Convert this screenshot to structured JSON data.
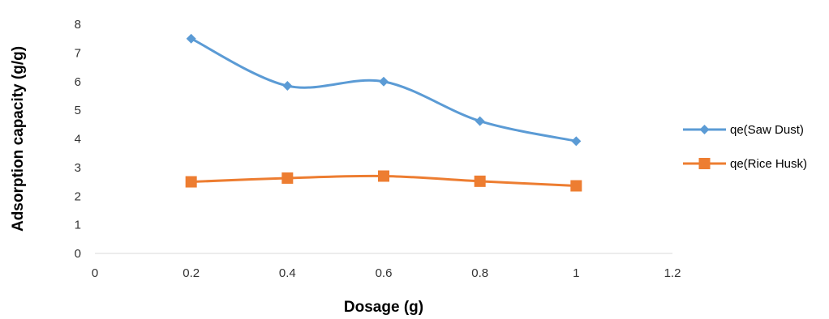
{
  "chart_data": {
    "type": "line",
    "title": "",
    "xlabel": "Dosage (g)",
    "ylabel": "Adsorption capacity (g/g)",
    "xlim": [
      0,
      1.2
    ],
    "ylim": [
      0,
      8
    ],
    "x_ticks": [
      "0",
      "0.2",
      "0.4",
      "0.6",
      "0.8",
      "1",
      "1.2"
    ],
    "y_ticks": [
      "0",
      "1",
      "2",
      "3",
      "4",
      "5",
      "6",
      "7",
      "8"
    ],
    "grid": false,
    "smooth": true,
    "legend_position": "right",
    "series": [
      {
        "name": "qe(Saw Dust)",
        "color": "#5B9BD5",
        "marker": "diamond",
        "x": [
          0.2,
          0.4,
          0.6,
          0.8,
          1.0
        ],
        "y": [
          7.5,
          5.85,
          6.0,
          4.62,
          3.92
        ]
      },
      {
        "name": "qe(Rice Husk)",
        "color": "#ED7D31",
        "marker": "square",
        "x": [
          0.2,
          0.4,
          0.6,
          0.8,
          1.0
        ],
        "y": [
          2.5,
          2.63,
          2.7,
          2.52,
          2.36
        ]
      }
    ]
  }
}
